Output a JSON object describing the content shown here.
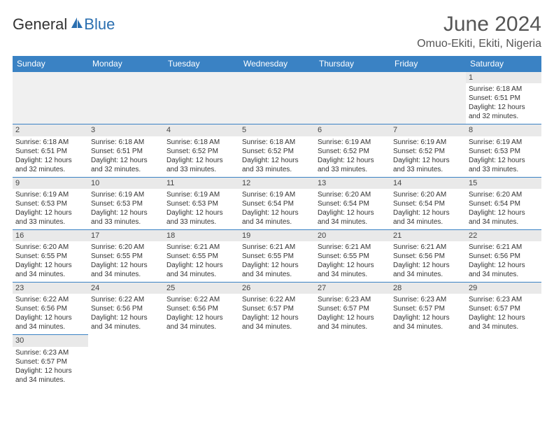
{
  "logo": {
    "part1": "General",
    "part2": "Blue"
  },
  "title": "June 2024",
  "location": "Omuo-Ekiti, Ekiti, Nigeria",
  "colors": {
    "header_bg": "#3a82c4",
    "header_text": "#ffffff",
    "daynum_bg": "#e9e9e9",
    "border": "#3a82c4",
    "title_color": "#555555",
    "logo_blue": "#2b6fb0"
  },
  "dayHeaders": [
    "Sunday",
    "Monday",
    "Tuesday",
    "Wednesday",
    "Thursday",
    "Friday",
    "Saturday"
  ],
  "weeks": [
    [
      null,
      null,
      null,
      null,
      null,
      null,
      {
        "n": "1",
        "sunrise": "Sunrise: 6:18 AM",
        "sunset": "Sunset: 6:51 PM",
        "dl1": "Daylight: 12 hours",
        "dl2": "and 32 minutes."
      }
    ],
    [
      {
        "n": "2",
        "sunrise": "Sunrise: 6:18 AM",
        "sunset": "Sunset: 6:51 PM",
        "dl1": "Daylight: 12 hours",
        "dl2": "and 32 minutes."
      },
      {
        "n": "3",
        "sunrise": "Sunrise: 6:18 AM",
        "sunset": "Sunset: 6:51 PM",
        "dl1": "Daylight: 12 hours",
        "dl2": "and 32 minutes."
      },
      {
        "n": "4",
        "sunrise": "Sunrise: 6:18 AM",
        "sunset": "Sunset: 6:52 PM",
        "dl1": "Daylight: 12 hours",
        "dl2": "and 33 minutes."
      },
      {
        "n": "5",
        "sunrise": "Sunrise: 6:18 AM",
        "sunset": "Sunset: 6:52 PM",
        "dl1": "Daylight: 12 hours",
        "dl2": "and 33 minutes."
      },
      {
        "n": "6",
        "sunrise": "Sunrise: 6:19 AM",
        "sunset": "Sunset: 6:52 PM",
        "dl1": "Daylight: 12 hours",
        "dl2": "and 33 minutes."
      },
      {
        "n": "7",
        "sunrise": "Sunrise: 6:19 AM",
        "sunset": "Sunset: 6:52 PM",
        "dl1": "Daylight: 12 hours",
        "dl2": "and 33 minutes."
      },
      {
        "n": "8",
        "sunrise": "Sunrise: 6:19 AM",
        "sunset": "Sunset: 6:53 PM",
        "dl1": "Daylight: 12 hours",
        "dl2": "and 33 minutes."
      }
    ],
    [
      {
        "n": "9",
        "sunrise": "Sunrise: 6:19 AM",
        "sunset": "Sunset: 6:53 PM",
        "dl1": "Daylight: 12 hours",
        "dl2": "and 33 minutes."
      },
      {
        "n": "10",
        "sunrise": "Sunrise: 6:19 AM",
        "sunset": "Sunset: 6:53 PM",
        "dl1": "Daylight: 12 hours",
        "dl2": "and 33 minutes."
      },
      {
        "n": "11",
        "sunrise": "Sunrise: 6:19 AM",
        "sunset": "Sunset: 6:53 PM",
        "dl1": "Daylight: 12 hours",
        "dl2": "and 33 minutes."
      },
      {
        "n": "12",
        "sunrise": "Sunrise: 6:19 AM",
        "sunset": "Sunset: 6:54 PM",
        "dl1": "Daylight: 12 hours",
        "dl2": "and 34 minutes."
      },
      {
        "n": "13",
        "sunrise": "Sunrise: 6:20 AM",
        "sunset": "Sunset: 6:54 PM",
        "dl1": "Daylight: 12 hours",
        "dl2": "and 34 minutes."
      },
      {
        "n": "14",
        "sunrise": "Sunrise: 6:20 AM",
        "sunset": "Sunset: 6:54 PM",
        "dl1": "Daylight: 12 hours",
        "dl2": "and 34 minutes."
      },
      {
        "n": "15",
        "sunrise": "Sunrise: 6:20 AM",
        "sunset": "Sunset: 6:54 PM",
        "dl1": "Daylight: 12 hours",
        "dl2": "and 34 minutes."
      }
    ],
    [
      {
        "n": "16",
        "sunrise": "Sunrise: 6:20 AM",
        "sunset": "Sunset: 6:55 PM",
        "dl1": "Daylight: 12 hours",
        "dl2": "and 34 minutes."
      },
      {
        "n": "17",
        "sunrise": "Sunrise: 6:20 AM",
        "sunset": "Sunset: 6:55 PM",
        "dl1": "Daylight: 12 hours",
        "dl2": "and 34 minutes."
      },
      {
        "n": "18",
        "sunrise": "Sunrise: 6:21 AM",
        "sunset": "Sunset: 6:55 PM",
        "dl1": "Daylight: 12 hours",
        "dl2": "and 34 minutes."
      },
      {
        "n": "19",
        "sunrise": "Sunrise: 6:21 AM",
        "sunset": "Sunset: 6:55 PM",
        "dl1": "Daylight: 12 hours",
        "dl2": "and 34 minutes."
      },
      {
        "n": "20",
        "sunrise": "Sunrise: 6:21 AM",
        "sunset": "Sunset: 6:55 PM",
        "dl1": "Daylight: 12 hours",
        "dl2": "and 34 minutes."
      },
      {
        "n": "21",
        "sunrise": "Sunrise: 6:21 AM",
        "sunset": "Sunset: 6:56 PM",
        "dl1": "Daylight: 12 hours",
        "dl2": "and 34 minutes."
      },
      {
        "n": "22",
        "sunrise": "Sunrise: 6:21 AM",
        "sunset": "Sunset: 6:56 PM",
        "dl1": "Daylight: 12 hours",
        "dl2": "and 34 minutes."
      }
    ],
    [
      {
        "n": "23",
        "sunrise": "Sunrise: 6:22 AM",
        "sunset": "Sunset: 6:56 PM",
        "dl1": "Daylight: 12 hours",
        "dl2": "and 34 minutes."
      },
      {
        "n": "24",
        "sunrise": "Sunrise: 6:22 AM",
        "sunset": "Sunset: 6:56 PM",
        "dl1": "Daylight: 12 hours",
        "dl2": "and 34 minutes."
      },
      {
        "n": "25",
        "sunrise": "Sunrise: 6:22 AM",
        "sunset": "Sunset: 6:56 PM",
        "dl1": "Daylight: 12 hours",
        "dl2": "and 34 minutes."
      },
      {
        "n": "26",
        "sunrise": "Sunrise: 6:22 AM",
        "sunset": "Sunset: 6:57 PM",
        "dl1": "Daylight: 12 hours",
        "dl2": "and 34 minutes."
      },
      {
        "n": "27",
        "sunrise": "Sunrise: 6:23 AM",
        "sunset": "Sunset: 6:57 PM",
        "dl1": "Daylight: 12 hours",
        "dl2": "and 34 minutes."
      },
      {
        "n": "28",
        "sunrise": "Sunrise: 6:23 AM",
        "sunset": "Sunset: 6:57 PM",
        "dl1": "Daylight: 12 hours",
        "dl2": "and 34 minutes."
      },
      {
        "n": "29",
        "sunrise": "Sunrise: 6:23 AM",
        "sunset": "Sunset: 6:57 PM",
        "dl1": "Daylight: 12 hours",
        "dl2": "and 34 minutes."
      }
    ],
    [
      {
        "n": "30",
        "sunrise": "Sunrise: 6:23 AM",
        "sunset": "Sunset: 6:57 PM",
        "dl1": "Daylight: 12 hours",
        "dl2": "and 34 minutes."
      },
      null,
      null,
      null,
      null,
      null,
      null
    ]
  ]
}
